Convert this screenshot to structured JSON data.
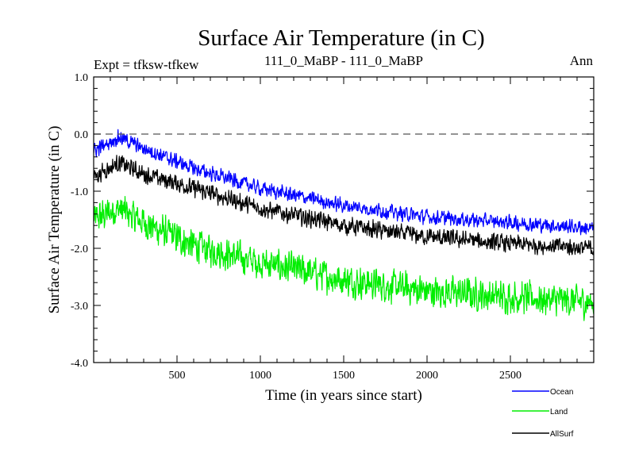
{
  "chart_data": {
    "type": "line",
    "title": "Surface Air Temperature (in C)",
    "subtitle_left": "Expt = tfksw-tfkew",
    "subtitle_center": "111_0_MaBP - 111_0_MaBP",
    "subtitle_right": "Ann",
    "xlabel": "Time (in years since start)",
    "ylabel": "Surface Air Temperature (in C)",
    "xlim": [
      0,
      3000
    ],
    "ylim": [
      -4.0,
      1.0
    ],
    "xticks": [
      500,
      1000,
      1500,
      2000,
      2500
    ],
    "xtick_labels": [
      "500",
      "1000",
      "1500",
      "2000",
      "2500"
    ],
    "yticks": [
      1.0,
      0.0,
      -1.0,
      -2.0,
      -3.0,
      -4.0
    ],
    "ytick_labels": [
      "1.0",
      "0.0",
      "-1.0",
      "-2.0",
      "-3.0",
      "-4.0"
    ],
    "reference_line": 0.0,
    "grid": false,
    "legend_position": "bottom-right",
    "series": [
      {
        "name": "Ocean",
        "color": "#0000ff",
        "noise_amplitude": 0.11,
        "trend": [
          [
            0,
            -0.3
          ],
          [
            150,
            -0.05
          ],
          [
            300,
            -0.25
          ],
          [
            600,
            -0.6
          ],
          [
            1000,
            -0.95
          ],
          [
            1500,
            -1.25
          ],
          [
            2000,
            -1.45
          ],
          [
            2500,
            -1.55
          ],
          [
            3000,
            -1.65
          ]
        ]
      },
      {
        "name": "Land",
        "color": "#00ee00",
        "noise_amplitude": 0.24,
        "trend": [
          [
            0,
            -1.5
          ],
          [
            150,
            -1.3
          ],
          [
            300,
            -1.55
          ],
          [
            600,
            -1.95
          ],
          [
            1000,
            -2.25
          ],
          [
            1500,
            -2.55
          ],
          [
            2000,
            -2.75
          ],
          [
            2500,
            -2.85
          ],
          [
            3000,
            -2.95
          ]
        ]
      },
      {
        "name": "AllSurf",
        "color": "#000000",
        "noise_amplitude": 0.13,
        "trend": [
          [
            0,
            -0.75
          ],
          [
            150,
            -0.5
          ],
          [
            300,
            -0.7
          ],
          [
            600,
            -0.95
          ],
          [
            1000,
            -1.3
          ],
          [
            1500,
            -1.6
          ],
          [
            2000,
            -1.8
          ],
          [
            2500,
            -1.92
          ],
          [
            3000,
            -2.0
          ]
        ]
      }
    ]
  }
}
